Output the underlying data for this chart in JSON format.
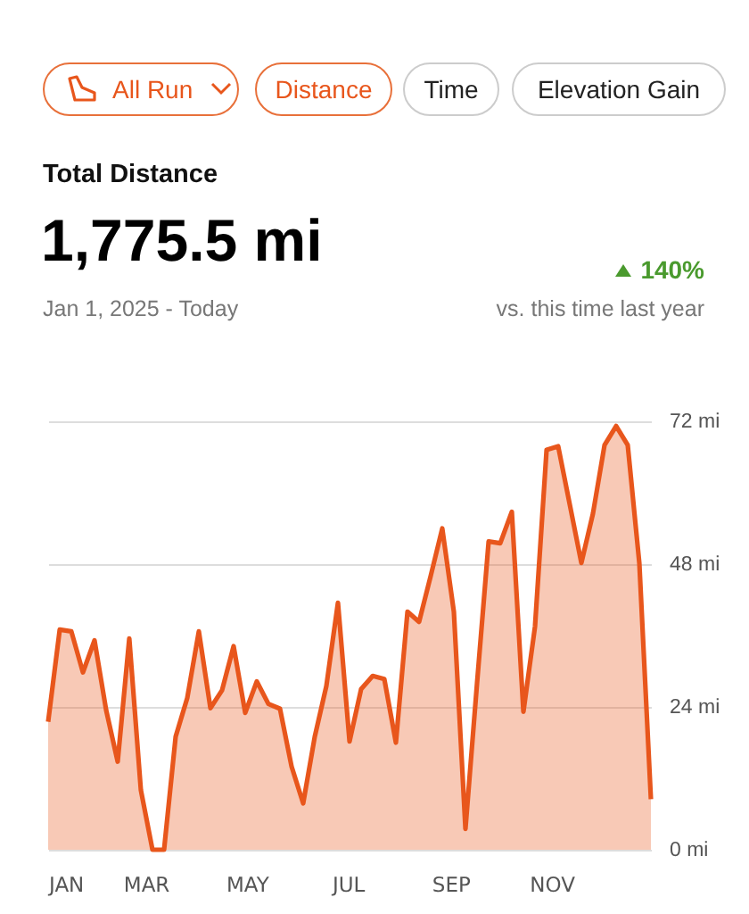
{
  "chart_data": {
    "type": "area",
    "title": "Total Distance",
    "subtitle": "1,775.5 mi",
    "annotations": [
      "Jan 1, 2025 - Today",
      "140%",
      "vs. this time last year",
      "All Run",
      "Distance",
      "Time",
      "Elevation Gain"
    ],
    "x": [
      "2025-01-01",
      "2025-01-08",
      "2025-01-15",
      "2025-01-22",
      "2025-01-29",
      "2025-02-05",
      "2025-02-12",
      "2025-02-19",
      "2025-02-26",
      "2025-03-05",
      "2025-03-12",
      "2025-03-19",
      "2025-03-26",
      "2025-04-02",
      "2025-04-09",
      "2025-04-16",
      "2025-04-23",
      "2025-04-30",
      "2025-05-07",
      "2025-05-14",
      "2025-05-21",
      "2025-05-28",
      "2025-06-04",
      "2025-06-11",
      "2025-06-18",
      "2025-06-25",
      "2025-07-02",
      "2025-07-09",
      "2025-07-16",
      "2025-07-23",
      "2025-07-30",
      "2025-08-06",
      "2025-08-13",
      "2025-08-20",
      "2025-08-27",
      "2025-09-03",
      "2025-09-10",
      "2025-09-17",
      "2025-09-24",
      "2025-10-01",
      "2025-10-08",
      "2025-10-15",
      "2025-10-22",
      "2025-10-29",
      "2025-11-05",
      "2025-11-12",
      "2025-11-19",
      "2025-11-26",
      "2025-12-03",
      "2025-12-10",
      "2025-12-17",
      "2025-12-24",
      "2025-12-31"
    ],
    "series": [
      {
        "color": "#e8561c",
        "values": [
          21.5,
          37,
          36.7,
          29.8,
          35.2,
          23.5,
          14.8,
          35.5,
          10,
          0,
          0,
          19,
          25.5,
          36.7,
          23.8,
          26.8,
          34.2,
          23,
          28.3,
          24.5,
          23.7,
          14,
          7.8,
          19,
          27.5,
          41.5,
          18.2,
          27,
          29.2,
          28.7,
          18,
          40,
          38.3,
          46,
          54,
          40,
          3.5,
          28,
          51.8,
          51.5,
          56.8,
          23.2,
          37.5,
          67.2,
          67.8,
          58,
          48.2,
          56.5,
          68,
          71.2,
          68,
          48.2,
          8.5
        ]
      }
    ],
    "xlim": [
      "2025-01-01",
      "2025-12-31"
    ],
    "xticks": [
      {
        "value": "2025-01-01",
        "label": "JAN"
      },
      {
        "value": "2025-03-01",
        "label": "MAR"
      },
      {
        "value": "2025-05-01",
        "label": "MAY"
      },
      {
        "value": "2025-07-01",
        "label": "JUL"
      },
      {
        "value": "2025-09-01",
        "label": "SEP"
      },
      {
        "value": "2025-11-01",
        "label": "NOV"
      }
    ],
    "ylim": [
      0,
      72
    ],
    "yticks": [
      {
        "value": 0,
        "label": "0 mi"
      },
      {
        "value": 24,
        "label": "24 mi"
      },
      {
        "value": 48,
        "label": "48 mi"
      },
      {
        "value": 72,
        "label": "72 mi"
      }
    ],
    "grid": "y"
  }
}
